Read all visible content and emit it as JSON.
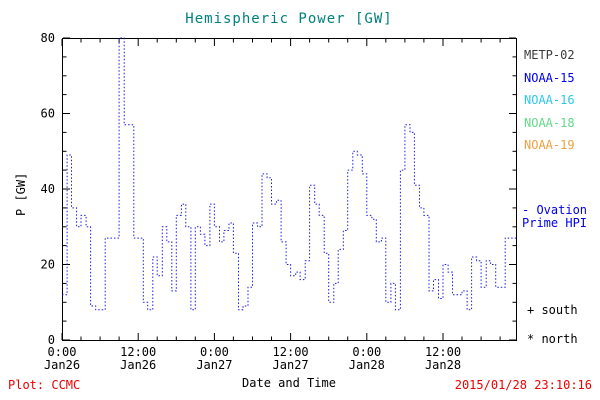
{
  "colors": {
    "title": "#007f7f",
    "axis": "#000000",
    "footer_red": "#ee0000"
  },
  "legend": {
    "items": [
      {
        "label": "METP-02",
        "color": "#3a3a3a"
      },
      {
        "label": "NOAA-15",
        "color": "#0000ee"
      },
      {
        "label": "NOAA-16",
        "color": "#2ec8e8"
      },
      {
        "label": "NOAA-18",
        "color": "#63d98c"
      },
      {
        "label": "NOAA-19",
        "color": "#f0a040"
      }
    ]
  },
  "annotations": {
    "ovation_line1": "- Ovation",
    "ovation_line2": "Prime HPI",
    "ovation_color": "#0000ee",
    "south_label": "+ south",
    "north_label": "* north"
  },
  "footer": {
    "plot_credit": "Plot: CCMC",
    "timestamp": "2015/01/28 23:10:16"
  },
  "chart_data": {
    "type": "line",
    "step": true,
    "line_style": "dotted",
    "series_color": "#1a1ae6",
    "title": "Hemispheric Power [GW]",
    "xlabel": "Date and Time",
    "ylabel": "P [GW]",
    "xlim": [
      0,
      71.5
    ],
    "ylim": [
      0,
      80
    ],
    "grid": false,
    "legend_position": "right",
    "y_ticks": [
      0,
      20,
      40,
      60,
      80
    ],
    "x_ticks": [
      {
        "hour": 0,
        "time": "0:00",
        "date": "Jan26"
      },
      {
        "hour": 12,
        "time": "12:00",
        "date": "Jan26"
      },
      {
        "hour": 24,
        "time": "0:00",
        "date": "Jan27"
      },
      {
        "hour": 36,
        "time": "12:00",
        "date": "Jan27"
      },
      {
        "hour": 48,
        "time": "0:00",
        "date": "Jan28"
      },
      {
        "hour": 60,
        "time": "12:00",
        "date": "Jan28"
      }
    ],
    "x_hours": [
      0,
      0.8,
      1.5,
      2.3,
      3.0,
      3.8,
      4.5,
      5.3,
      6.0,
      6.8,
      7.5,
      8.3,
      9.0,
      9.8,
      10.5,
      11.3,
      12.0,
      12.8,
      13.5,
      14.3,
      15.0,
      15.8,
      16.5,
      17.3,
      18.0,
      18.8,
      19.5,
      20.3,
      21.0,
      21.8,
      22.5,
      23.3,
      24.0,
      24.8,
      25.5,
      26.3,
      27.0,
      27.8,
      28.5,
      29.3,
      30.0,
      30.8,
      31.5,
      32.3,
      33.0,
      33.8,
      34.5,
      35.3,
      36.0,
      36.8,
      37.5,
      38.3,
      39.0,
      39.8,
      40.5,
      41.3,
      42.0,
      42.8,
      43.5,
      44.3,
      45.0,
      45.8,
      46.5,
      47.3,
      48.0,
      48.8,
      49.5,
      50.3,
      51.0,
      51.8,
      52.5,
      53.3,
      54.0,
      54.8,
      55.5,
      56.3,
      57.0,
      57.8,
      58.5,
      59.3,
      60.0,
      60.8,
      61.5,
      62.3,
      63.0,
      63.8,
      64.5,
      65.3,
      66.0,
      66.8,
      67.5,
      68.3,
      69.0,
      69.8,
      70.5
    ],
    "values": [
      12,
      49,
      35,
      30,
      33,
      30,
      9,
      8,
      8,
      27,
      27,
      27,
      80,
      57,
      57,
      27,
      27,
      10,
      8,
      22,
      17,
      30,
      26,
      13,
      33,
      36,
      30,
      8,
      30,
      28,
      25,
      36,
      30,
      26,
      29,
      31,
      23,
      8,
      9,
      14,
      31,
      30,
      44,
      43,
      36,
      37,
      26,
      20,
      17,
      18,
      16,
      21,
      41,
      36,
      33,
      23,
      10,
      15,
      24,
      29,
      45,
      50,
      49,
      44,
      33,
      32,
      26,
      27,
      10,
      15,
      8,
      45,
      57,
      55,
      41,
      35,
      33,
      13,
      16,
      11,
      20,
      18,
      12,
      12,
      13,
      8,
      22,
      21,
      14,
      21,
      20,
      14,
      14,
      27,
      27
    ]
  }
}
